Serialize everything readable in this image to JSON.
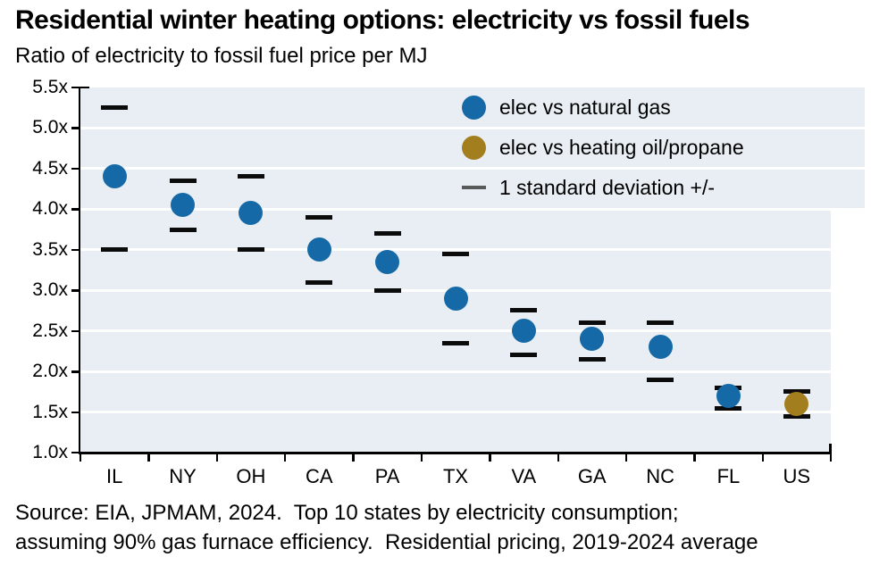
{
  "header": {
    "title": "Residential winter heating options: electricity vs fossil fuels",
    "subtitle": "Ratio of electricity to fossil fuel price per MJ"
  },
  "legend": {
    "items": [
      {
        "id": "natural-gas",
        "label": "elec vs natural gas",
        "marker": "circle",
        "color": "#1569A7"
      },
      {
        "id": "heating-oil",
        "label": "elec vs heating oil/propane",
        "marker": "circle",
        "color": "#A37E1E"
      },
      {
        "id": "std-deviation",
        "label": "1 standard deviation +/-",
        "marker": "dash",
        "color": "#58595B"
      }
    ]
  },
  "footer": {
    "line1": "Source: EIA, JPMAM, 2024.  Top 10 states by electricity consumption;",
    "line2": "assuming 90% gas furnace efficiency.  Residential pricing, 2019-2024 average"
  },
  "colors": {
    "blue": "#1569A7",
    "gold": "#A37E1E",
    "plot_background": "#E8EEF3",
    "gridline": "#FFFFFF",
    "axis": "#000000",
    "error_dash": "#0B0B0B",
    "legend_dash": "#58595B"
  },
  "chart_data": {
    "type": "scatter",
    "title": "Residential winter heating options: electricity vs fossil fuels",
    "subtitle": "Ratio of electricity to fossil fuel price per MJ",
    "categories": [
      "IL",
      "NY",
      "OH",
      "CA",
      "PA",
      "TX",
      "VA",
      "GA",
      "NC",
      "FL",
      "US"
    ],
    "series": [
      {
        "name": "elec vs natural gas",
        "color": "#1569A7",
        "values": [
          4.4,
          4.05,
          3.95,
          3.5,
          3.35,
          2.9,
          2.5,
          2.4,
          2.3,
          1.7,
          null
        ]
      },
      {
        "name": "elec vs heating oil/propane",
        "color": "#A37E1E",
        "values": [
          null,
          null,
          null,
          null,
          null,
          null,
          null,
          null,
          null,
          null,
          1.6
        ]
      }
    ],
    "error_bars": {
      "name": "1 standard deviation +/-",
      "high": [
        5.25,
        4.35,
        4.4,
        3.9,
        3.7,
        3.45,
        2.75,
        2.6,
        2.6,
        1.8,
        1.75
      ],
      "low": [
        3.5,
        3.75,
        3.5,
        3.1,
        3.0,
        2.35,
        2.2,
        2.15,
        1.9,
        1.55,
        1.45
      ]
    },
    "ylim": [
      1.0,
      5.5
    ],
    "ytick_values": [
      5.5,
      5.0,
      4.5,
      4.0,
      3.5,
      3.0,
      2.5,
      2.0,
      1.5,
      1.0
    ],
    "ytick_labels": [
      "5.5x",
      "5.0x",
      "4.5x",
      "4.0x",
      "3.5x",
      "3.0x",
      "2.5x",
      "2.0x",
      "1.5x",
      "1.0x"
    ],
    "grid": true,
    "legend_position": "top-right"
  }
}
